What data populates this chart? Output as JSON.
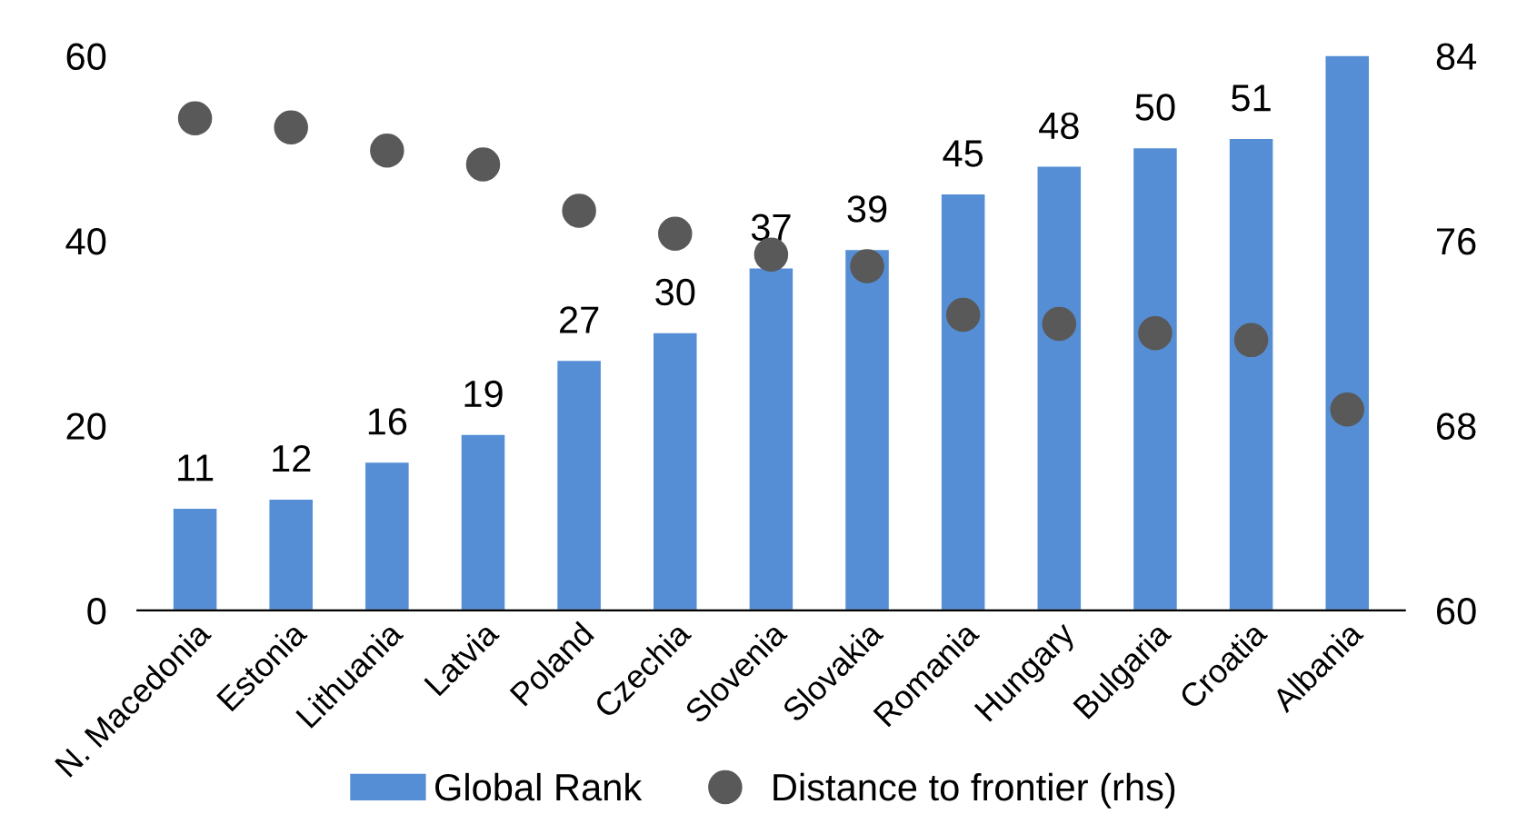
{
  "chart_data": {
    "type": "bar",
    "categories": [
      "N. Macedonia",
      "Estonia",
      "Lithuania",
      "Latvia",
      "Poland",
      "Czechia",
      "Slovenia",
      "Slovakia",
      "Romania",
      "Hungary",
      "Bulgaria",
      "Croatia",
      "Albania"
    ],
    "series": [
      {
        "name": "Global Rank",
        "color": "#558ed5",
        "values": [
          11,
          12,
          16,
          19,
          27,
          30,
          37,
          39,
          45,
          48,
          50,
          51,
          60
        ],
        "value_labels": [
          "11",
          "12",
          "16",
          "19",
          "27",
          "30",
          "37",
          "39",
          "45",
          "48",
          "50",
          "51",
          null
        ]
      },
      {
        "name": "Distance to frontier (rhs)",
        "type": "scatter",
        "marker": "circle",
        "axis": "y2",
        "color": "#595959",
        "values": [
          81.3,
          80.9,
          79.9,
          79.3,
          77.3,
          76.3,
          75.4,
          74.9,
          72.8,
          72.4,
          72.0,
          71.7,
          68.7
        ]
      }
    ],
    "ylim": [
      0,
      60
    ],
    "yticks": [
      0,
      20,
      40,
      60
    ],
    "y2lim": [
      60,
      84
    ],
    "y2ticks": [
      60,
      68,
      76,
      84
    ],
    "grid": false,
    "legend": "bottom"
  }
}
